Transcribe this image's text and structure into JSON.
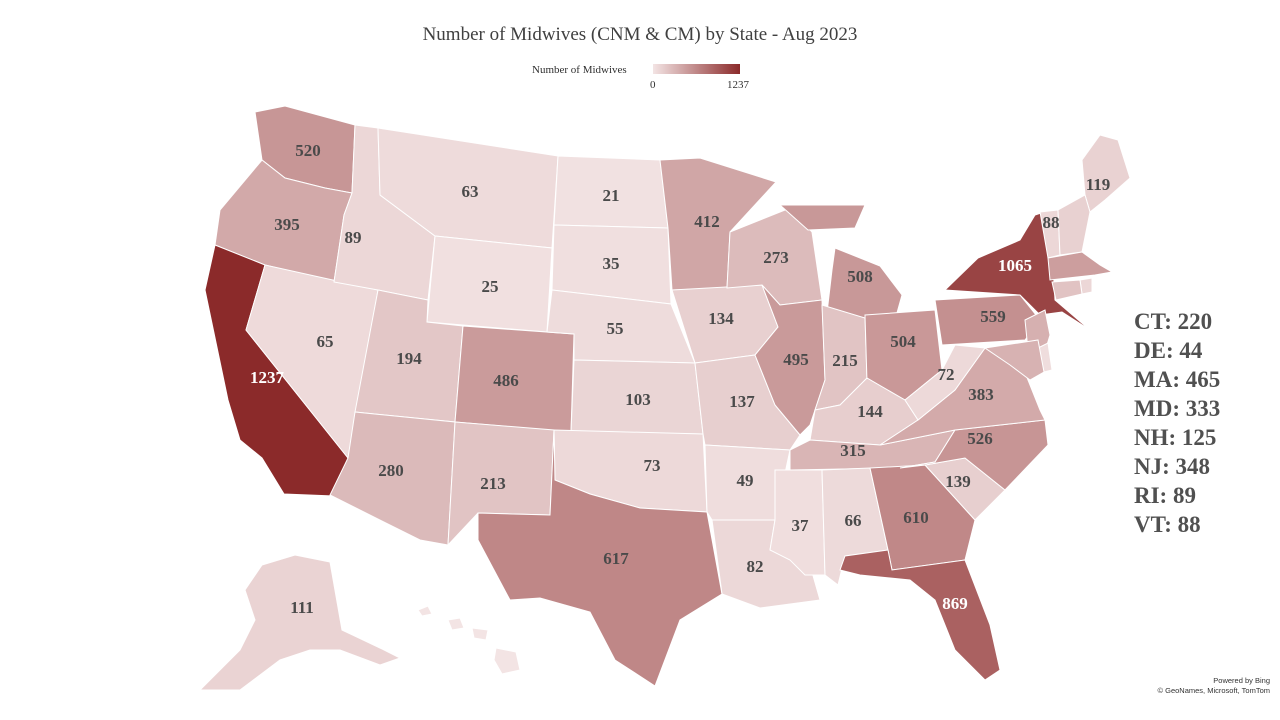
{
  "title": "Number of Midwives (CNM & CM) by State - Aug 2023",
  "legend": {
    "title": "Number of Midwives",
    "min": "0",
    "max": "1237"
  },
  "colors": {
    "low": "#f3e4e4",
    "high": "#8b2a2a",
    "border": "#ffffff",
    "label": "#4a4a4a"
  },
  "states": [
    {
      "abbr": "WA",
      "value": 520
    },
    {
      "abbr": "OR",
      "value": 395
    },
    {
      "abbr": "CA",
      "value": 1237
    },
    {
      "abbr": "NV",
      "value": 65
    },
    {
      "abbr": "ID",
      "value": 89
    },
    {
      "abbr": "MT",
      "value": 63
    },
    {
      "abbr": "WY",
      "value": 25
    },
    {
      "abbr": "UT",
      "value": 194
    },
    {
      "abbr": "AZ",
      "value": 280
    },
    {
      "abbr": "CO",
      "value": 486
    },
    {
      "abbr": "NM",
      "value": 213
    },
    {
      "abbr": "ND",
      "value": 21
    },
    {
      "abbr": "SD",
      "value": 35
    },
    {
      "abbr": "NE",
      "value": 55
    },
    {
      "abbr": "KS",
      "value": 103
    },
    {
      "abbr": "OK",
      "value": 73
    },
    {
      "abbr": "TX",
      "value": 617
    },
    {
      "abbr": "MN",
      "value": 412
    },
    {
      "abbr": "IA",
      "value": 134
    },
    {
      "abbr": "MO",
      "value": 137
    },
    {
      "abbr": "AR",
      "value": 49
    },
    {
      "abbr": "LA",
      "value": 82
    },
    {
      "abbr": "WI",
      "value": 273
    },
    {
      "abbr": "IL",
      "value": 495
    },
    {
      "abbr": "MI",
      "value": 508
    },
    {
      "abbr": "IN",
      "value": 215
    },
    {
      "abbr": "OH",
      "value": 504
    },
    {
      "abbr": "KY",
      "value": 144
    },
    {
      "abbr": "TN",
      "value": 315
    },
    {
      "abbr": "MS",
      "value": 37
    },
    {
      "abbr": "AL",
      "value": 66
    },
    {
      "abbr": "GA",
      "value": 610
    },
    {
      "abbr": "FL",
      "value": 869
    },
    {
      "abbr": "SC",
      "value": 139
    },
    {
      "abbr": "NC",
      "value": 526
    },
    {
      "abbr": "VA",
      "value": 383
    },
    {
      "abbr": "WV",
      "value": 72
    },
    {
      "abbr": "PA",
      "value": 559
    },
    {
      "abbr": "NY",
      "value": 1065
    },
    {
      "abbr": "ME",
      "value": 119
    },
    {
      "abbr": "AK",
      "value": 111
    },
    {
      "abbr": "HI",
      "value": null
    },
    {
      "abbr": "VT",
      "value": 88
    },
    {
      "abbr": "NH",
      "value": 125
    },
    {
      "abbr": "MA",
      "value": 465
    },
    {
      "abbr": "RI",
      "value": 89
    },
    {
      "abbr": "CT",
      "value": 220
    },
    {
      "abbr": "NJ",
      "value": 348
    },
    {
      "abbr": "DE",
      "value": 44
    },
    {
      "abbr": "MD",
      "value": 333
    }
  ],
  "small_states_list": [
    "CT: 220",
    "DE: 44",
    "MA: 465",
    "MD: 333",
    "NH: 125",
    "NJ: 348",
    "RI: 89",
    "VT: 88"
  ],
  "attribution": {
    "line1": "Powered by Bing",
    "line2": "© GeoNames, Microsoft, TomTom"
  }
}
